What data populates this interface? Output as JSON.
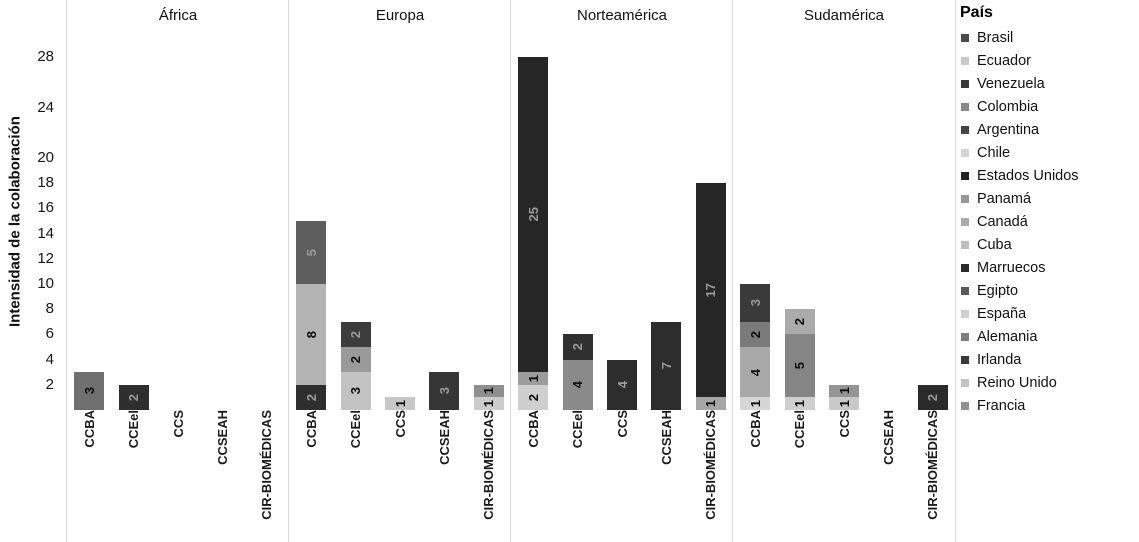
{
  "legend": {
    "title": "País",
    "items": [
      {
        "label": "Brasil",
        "color": "#4a4a4a"
      },
      {
        "label": "Ecuador",
        "color": "#c9c9c9"
      },
      {
        "label": "Venezuela",
        "color": "#3a3a3a"
      },
      {
        "label": "Colombia",
        "color": "#8a8a8a"
      },
      {
        "label": "Argentina",
        "color": "#454545"
      },
      {
        "label": "Chile",
        "color": "#d4d4d4"
      },
      {
        "label": "Estados Unidos",
        "color": "#212121"
      },
      {
        "label": "Panamá",
        "color": "#969696"
      },
      {
        "label": "Canadá",
        "color": "#ababab"
      },
      {
        "label": "Cuba",
        "color": "#bdbdbd"
      },
      {
        "label": "Marruecos",
        "color": "#2b2b2b"
      },
      {
        "label": "Egipto",
        "color": "#5a5a5a"
      },
      {
        "label": "España",
        "color": "#cfcfcf"
      },
      {
        "label": "Alemania",
        "color": "#7d7d7d"
      },
      {
        "label": "Irlanda",
        "color": "#383838"
      },
      {
        "label": "Reino Unido",
        "color": "#c2c2c2"
      },
      {
        "label": "Francia",
        "color": "#909090"
      }
    ]
  },
  "chart_data": {
    "type": "bar",
    "stacked": true,
    "ylabel": "Intensidad de la colaboración",
    "yticks": [
      28,
      24,
      20,
      18,
      16,
      14,
      12,
      10,
      8,
      6,
      4,
      2
    ],
    "ylim": [
      0,
      29
    ],
    "categories": [
      "CCBA",
      "CCEel",
      "CCS",
      "CCSEAH",
      "CIR-BIOMÉDICAS"
    ],
    "legend_position": "right",
    "grid": false,
    "panels": [
      {
        "region": "África",
        "bars": [
          {
            "category": "CCBA",
            "segments": [
              {
                "value": 3,
                "color": "#6f6f6f"
              }
            ]
          },
          {
            "category": "CCEel",
            "segments": [
              {
                "value": 2,
                "color": "#2e2e2e"
              }
            ]
          },
          {
            "category": "CCS",
            "segments": []
          },
          {
            "category": "CCSEAH",
            "segments": []
          },
          {
            "category": "CIR-BIOMÉDICAS",
            "segments": []
          }
        ]
      },
      {
        "region": "Europa",
        "bars": [
          {
            "category": "CCBA",
            "segments": [
              {
                "value": 2,
                "color": "#2e2e2e"
              },
              {
                "value": 8,
                "color": "#b4b4b4"
              },
              {
                "value": 5,
                "color": "#5e5e5e"
              }
            ]
          },
          {
            "category": "CCEel",
            "segments": [
              {
                "value": 3,
                "color": "#c3c3c3"
              },
              {
                "value": 2,
                "color": "#9a9a9a"
              },
              {
                "value": 2,
                "color": "#3c3c3c"
              }
            ]
          },
          {
            "category": "CCS",
            "segments": [
              {
                "value": 1,
                "color": "#c7c7c7"
              }
            ]
          },
          {
            "category": "CCSEAH",
            "segments": [
              {
                "value": 3,
                "color": "#363636"
              }
            ]
          },
          {
            "category": "CIR-BIOMÉDICAS",
            "segments": [
              {
                "value": 1,
                "color": "#cbcbcb"
              },
              {
                "value": 1,
                "color": "#8f8f8f"
              }
            ]
          }
        ]
      },
      {
        "region": "Norteamérica",
        "bars": [
          {
            "category": "CCBA",
            "segments": [
              {
                "value": 2,
                "color": "#cfcfcf"
              },
              {
                "value": 1,
                "color": "#9c9c9c"
              },
              {
                "value": 25,
                "color": "#262626"
              }
            ]
          },
          {
            "category": "CCEel",
            "segments": [
              {
                "value": 4,
                "color": "#8a8a8a"
              },
              {
                "value": 2,
                "color": "#303030"
              }
            ]
          },
          {
            "category": "CCS",
            "segments": [
              {
                "value": 4,
                "color": "#2d2d2d"
              }
            ]
          },
          {
            "category": "CCSEAH",
            "segments": [
              {
                "value": 7,
                "color": "#2d2d2d"
              }
            ]
          },
          {
            "category": "CIR-BIOMÉDICAS",
            "segments": [
              {
                "value": 1,
                "color": "#a6a6a6"
              },
              {
                "value": 17,
                "color": "#262626"
              }
            ]
          }
        ]
      },
      {
        "region": "Sudamérica",
        "bars": [
          {
            "category": "CCBA",
            "segments": [
              {
                "value": 1,
                "color": "#d6d6d6"
              },
              {
                "value": 4,
                "color": "#a9a9a9"
              },
              {
                "value": 2,
                "color": "#7a7a7a"
              },
              {
                "value": 3,
                "color": "#3a3a3a"
              }
            ]
          },
          {
            "category": "CCEel",
            "segments": [
              {
                "value": 1,
                "color": "#cfcfcf"
              },
              {
                "value": 5,
                "color": "#858585"
              },
              {
                "value": 2,
                "color": "#ababab"
              }
            ]
          },
          {
            "category": "CCS",
            "segments": [
              {
                "value": 1,
                "color": "#c9c9c9"
              },
              {
                "value": 1,
                "color": "#959595"
              }
            ]
          },
          {
            "category": "CCSEAH",
            "segments": []
          },
          {
            "category": "CIR-BIOMÉDICAS",
            "segments": [
              {
                "value": 2,
                "color": "#2b2b2b"
              }
            ]
          }
        ]
      }
    ]
  }
}
